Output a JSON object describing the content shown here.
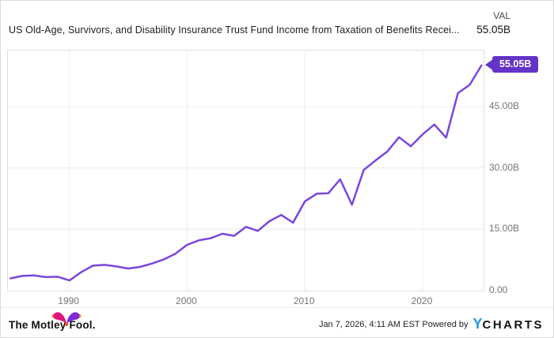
{
  "header": {
    "title": "US Old-Age, Survivors, and Disability Insurance Trust Fund Income from Taxation of Benefits Recei...",
    "val_label": "VAL",
    "val_value": "55.05B"
  },
  "chart_data": {
    "type": "line",
    "title": "US Old-Age, Survivors, and Disability Insurance Trust Fund Income from Taxation of Benefits Recei...",
    "unit": "USD, billions",
    "x": [
      1985,
      1986,
      1987,
      1988,
      1989,
      1990,
      1991,
      1992,
      1993,
      1994,
      1995,
      1996,
      1997,
      1998,
      1999,
      2000,
      2001,
      2002,
      2003,
      2004,
      2005,
      2006,
      2007,
      2008,
      2009,
      2010,
      2011,
      2012,
      2013,
      2014,
      2015,
      2016,
      2017,
      2018,
      2019,
      2020,
      2021,
      2022,
      2023,
      2024,
      2025
    ],
    "values": [
      3.0,
      3.6,
      3.7,
      3.3,
      3.4,
      2.5,
      4.5,
      6.1,
      6.3,
      5.9,
      5.4,
      5.8,
      6.6,
      7.6,
      9.0,
      11.2,
      12.3,
      12.8,
      13.9,
      13.4,
      15.6,
      14.6,
      17.0,
      18.5,
      16.6,
      21.8,
      23.7,
      23.8,
      27.2,
      21.0,
      29.5,
      31.8,
      34.0,
      37.5,
      35.3,
      38.2,
      40.6,
      37.4,
      48.3,
      50.3,
      55.05
    ],
    "last_value_label": "55.05B",
    "xlim": [
      1984.78,
      2025.18
    ],
    "ylim": [
      0,
      58.7
    ],
    "x_ticks": [
      {
        "value": 1990,
        "label": "1990"
      },
      {
        "value": 2000,
        "label": "2000"
      },
      {
        "value": 2010,
        "label": "2010"
      },
      {
        "value": 2020,
        "label": "2020"
      }
    ],
    "y_ticks": [
      {
        "value": 0,
        "label": "0.00"
      },
      {
        "value": 15,
        "label": "15.00B"
      },
      {
        "value": 30,
        "label": "30.00B"
      },
      {
        "value": 45,
        "label": "45.00B"
      }
    ],
    "grid": true,
    "legend_position": "none",
    "line_color": "#7a46df",
    "badge_color": "#6433c8",
    "grid_color": "#ececec"
  },
  "footer": {
    "brand": "The Motley Fool.",
    "timestamp_powered": "Jan 7, 2026, 4:11 AM EST Powered by",
    "ycharts_y": "Y",
    "ycharts_rest": "CHARTS",
    "ycharts_blue": "#1e9be9"
  }
}
